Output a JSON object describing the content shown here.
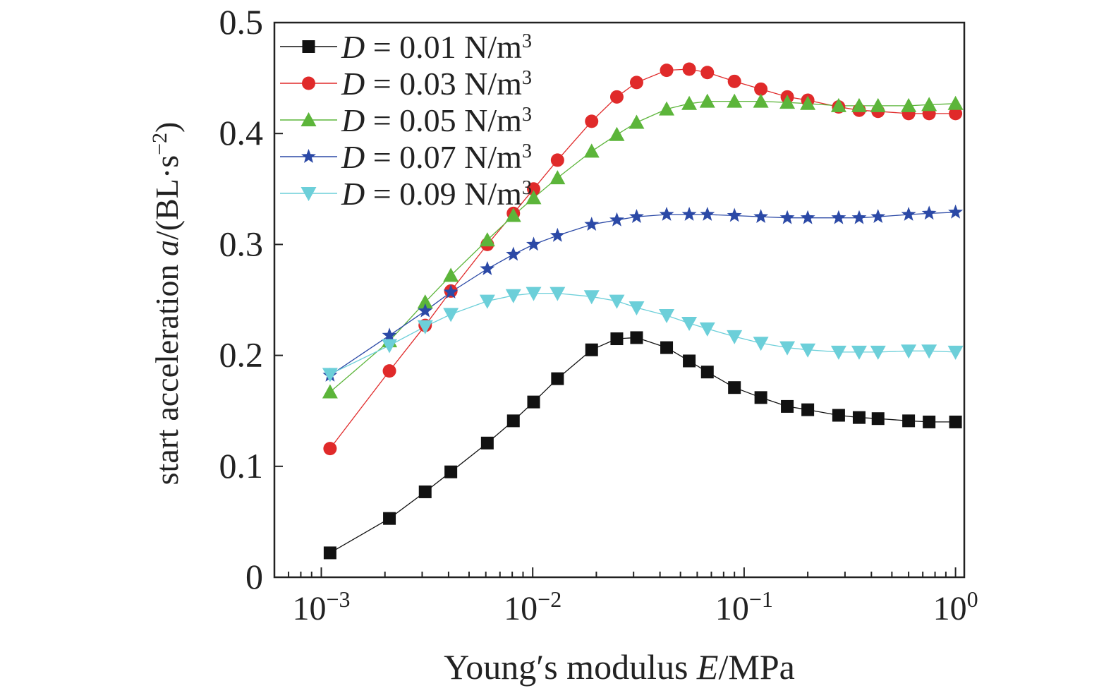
{
  "chart_data": {
    "type": "line",
    "xscale": "log",
    "xlim": [
      0.0006,
      1.1
    ],
    "ylim": [
      0,
      0.5
    ],
    "xticks": [
      {
        "value": 0.001,
        "base": "10",
        "exp": "−3"
      },
      {
        "value": 0.01,
        "base": "10",
        "exp": "−2"
      },
      {
        "value": 0.1,
        "base": "10",
        "exp": "−1"
      },
      {
        "value": 1,
        "base": "10",
        "exp": "0"
      }
    ],
    "yticks": [
      {
        "value": 0,
        "label": "0"
      },
      {
        "value": 0.1,
        "label": "0.1"
      },
      {
        "value": 0.2,
        "label": "0.2"
      },
      {
        "value": 0.3,
        "label": "0.3"
      },
      {
        "value": 0.4,
        "label": "0.4"
      },
      {
        "value": 0.5,
        "label": "0.5"
      }
    ],
    "xlabel": {
      "pre": "Young′s modulus ",
      "italic": "E",
      "post": "/MPa"
    },
    "ylabel": {
      "pre": "start acceleration ",
      "italic": "a",
      "post": "/(BL·s",
      "sup": "−2",
      "end": ")"
    },
    "legend_position": "top-left",
    "x": [
      0.0011,
      0.0021,
      0.0031,
      0.0041,
      0.0061,
      0.0081,
      0.0101,
      0.0131,
      0.019,
      0.025,
      0.031,
      0.043,
      0.055,
      0.067,
      0.09,
      0.12,
      0.16,
      0.2,
      0.28,
      0.35,
      0.43,
      0.6,
      0.75,
      1.0
    ],
    "series": [
      {
        "label_var": "D",
        "label_text": " = 0.01 N/m",
        "label_sup": "3",
        "color": "#111111",
        "marker": "square",
        "values": [
          0.022,
          0.053,
          0.077,
          0.095,
          0.121,
          0.141,
          0.158,
          0.179,
          0.205,
          0.215,
          0.216,
          0.207,
          0.195,
          0.185,
          0.171,
          0.162,
          0.154,
          0.151,
          0.146,
          0.144,
          0.143,
          0.141,
          0.14,
          0.14
        ]
      },
      {
        "label_var": "D",
        "label_text": " = 0.03 N/m",
        "label_sup": "3",
        "color": "#e02a2a",
        "marker": "circle",
        "values": [
          0.116,
          0.186,
          0.227,
          0.258,
          0.3,
          0.328,
          0.35,
          0.376,
          0.411,
          0.433,
          0.446,
          0.457,
          0.458,
          0.455,
          0.447,
          0.44,
          0.433,
          0.43,
          0.424,
          0.421,
          0.42,
          0.418,
          0.418,
          0.418
        ]
      },
      {
        "label_var": "D",
        "label_text": " = 0.05 N/m",
        "label_sup": "3",
        "color": "#5cb53a",
        "marker": "triangle-up",
        "values": [
          0.167,
          0.213,
          0.248,
          0.272,
          0.304,
          0.326,
          0.342,
          0.36,
          0.384,
          0.399,
          0.41,
          0.422,
          0.427,
          0.429,
          0.429,
          0.429,
          0.428,
          0.427,
          0.425,
          0.425,
          0.425,
          0.425,
          0.426,
          0.427
        ]
      },
      {
        "label_var": "D",
        "label_text": " = 0.07 N/m",
        "label_sup": "3",
        "color": "#2b49a6",
        "marker": "star",
        "values": [
          0.182,
          0.218,
          0.24,
          0.257,
          0.278,
          0.291,
          0.3,
          0.308,
          0.318,
          0.322,
          0.325,
          0.327,
          0.327,
          0.327,
          0.326,
          0.325,
          0.324,
          0.324,
          0.324,
          0.324,
          0.325,
          0.327,
          0.328,
          0.329
        ]
      },
      {
        "label_var": "D",
        "label_text": " = 0.09 N/m",
        "label_sup": "3",
        "color": "#6ccfd9",
        "marker": "triangle-down",
        "values": [
          0.183,
          0.209,
          0.226,
          0.237,
          0.249,
          0.254,
          0.256,
          0.256,
          0.253,
          0.249,
          0.243,
          0.236,
          0.229,
          0.224,
          0.217,
          0.211,
          0.207,
          0.205,
          0.203,
          0.203,
          0.203,
          0.204,
          0.204,
          0.203
        ]
      }
    ]
  }
}
